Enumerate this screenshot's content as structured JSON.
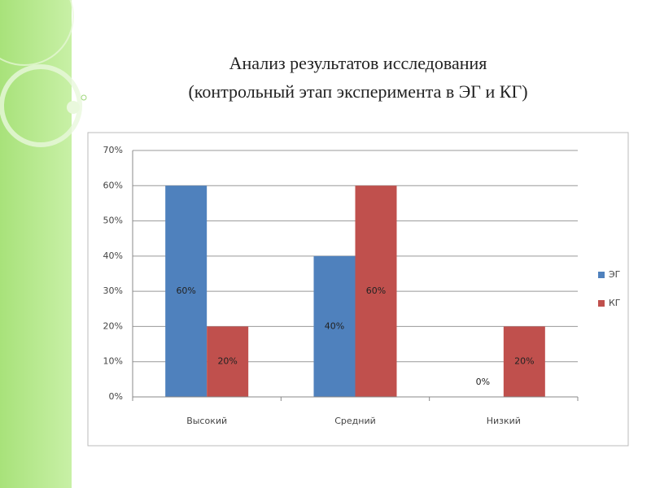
{
  "chart_data": {
    "type": "bar",
    "title": "Анализ результатов исследования",
    "subtitle": "(контрольный этап эксперимента в ЭГ и КГ)",
    "categories": [
      "Высокий",
      "Средний",
      "Низкий"
    ],
    "series": [
      {
        "name": "ЭГ",
        "color": "#4f81bd",
        "values": [
          60,
          40,
          0
        ],
        "value_labels": [
          "60%",
          "40%",
          "0%"
        ]
      },
      {
        "name": "КГ",
        "color": "#c0504d",
        "values": [
          20,
          60,
          20
        ],
        "value_labels": [
          "20%",
          "60%",
          "20%"
        ]
      }
    ],
    "ylim": [
      0,
      70
    ],
    "yticks": [
      {
        "value": 0,
        "label": "0%"
      },
      {
        "value": 10,
        "label": "10%"
      },
      {
        "value": 20,
        "label": "20%"
      },
      {
        "value": 30,
        "label": "30%"
      },
      {
        "value": 40,
        "label": "40%"
      },
      {
        "value": 50,
        "label": "50%"
      },
      {
        "value": 60,
        "label": "60%"
      },
      {
        "value": 70,
        "label": "70%"
      }
    ],
    "grid": true,
    "legend": "right"
  }
}
